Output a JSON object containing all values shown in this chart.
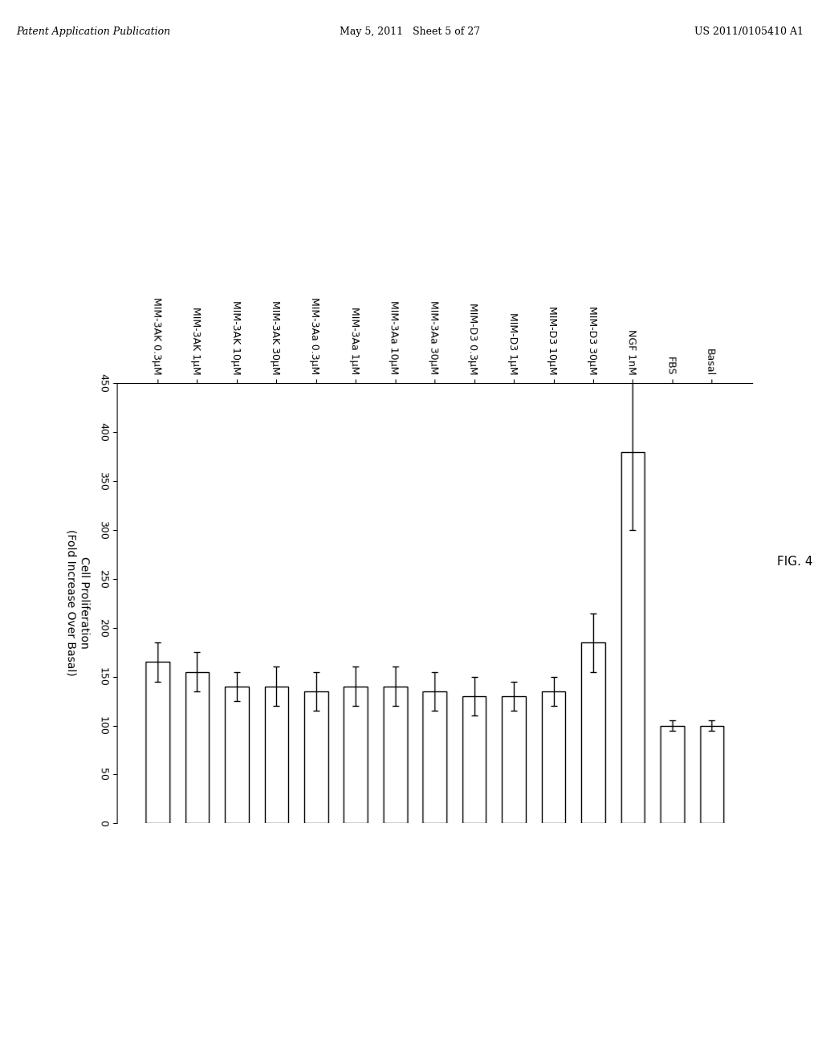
{
  "header_left": "Patent Application Publication",
  "header_mid": "May 5, 2011   Sheet 5 of 27",
  "header_right": "US 2011/0105410 A1",
  "fig_label": "FIG. 4",
  "ylabel": "Cell Proliferation\n(Fold Increase Over Basal)",
  "xlim": [
    0,
    450
  ],
  "xticks": [
    0,
    50,
    100,
    150,
    200,
    250,
    300,
    350,
    400,
    450
  ],
  "categories": [
    "Basal",
    "FBS",
    "NGF 1nM",
    "MIM-D3 30μM",
    "MIM-D3 10μM",
    "MIM-D3 1μM",
    "MIM-D3 0.3μM",
    "MIM-3Aa 30μM",
    "MIM-3Aa 10μM",
    "MIM-3Aa 1μM",
    "MIM-3Aa 0.3μM",
    "MIM-3AK 30μM",
    "MIM-3AK 10μM",
    "MIM-3AK 1μM",
    "MIM-3AK 0.3μM"
  ],
  "values": [
    100,
    100,
    380,
    185,
    135,
    130,
    130,
    135,
    140,
    140,
    135,
    140,
    140,
    155,
    165
  ],
  "errors": [
    5,
    5,
    80,
    30,
    15,
    15,
    20,
    20,
    20,
    20,
    20,
    20,
    15,
    20,
    20
  ],
  "bar_color": "#ffffff",
  "bar_edge_color": "#000000",
  "background_color": "#ffffff"
}
